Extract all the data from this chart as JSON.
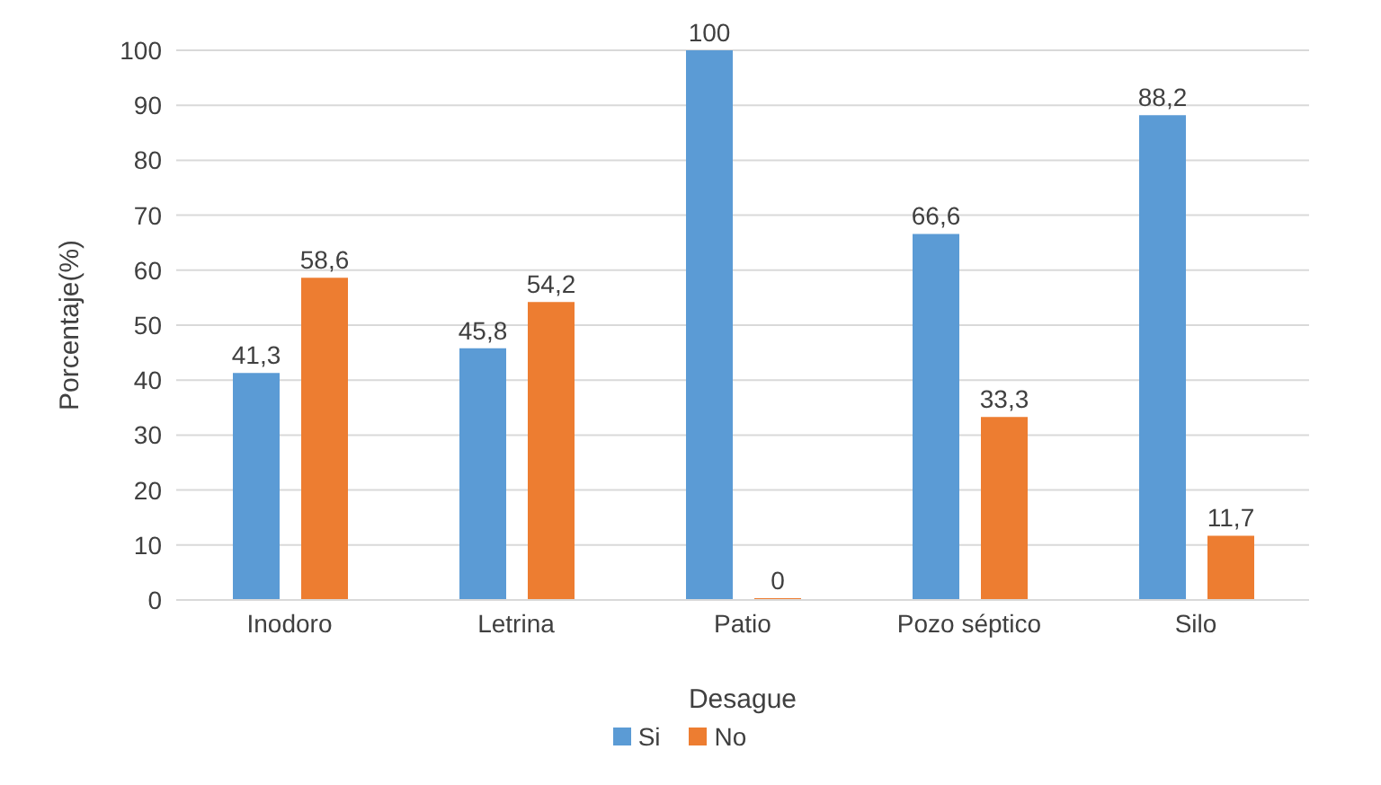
{
  "chart_data": {
    "type": "bar",
    "xlabel": "Desague",
    "ylabel": "Porcentaje(%)",
    "categories": [
      "Inodoro",
      "Letrina",
      "Patio",
      "Pozo séptico",
      "Silo"
    ],
    "series": [
      {
        "name": "Si",
        "color": "#5b9bd5",
        "values": [
          41.3,
          45.8,
          100,
          66.6,
          88.2
        ],
        "value_labels": [
          "41,3",
          "45,8",
          "100",
          "66,6",
          "88,2"
        ]
      },
      {
        "name": "No",
        "color": "#ed7d31",
        "values": [
          58.6,
          54.2,
          0,
          33.3,
          11.7
        ],
        "value_labels": [
          "58,6",
          "54,2",
          "0",
          "33,3",
          "11,7"
        ]
      }
    ],
    "ylim": [
      0,
      100
    ],
    "yticks": [
      0,
      10,
      20,
      30,
      40,
      50,
      60,
      70,
      80,
      90,
      100
    ],
    "grid": "y",
    "legend": "bottom"
  }
}
